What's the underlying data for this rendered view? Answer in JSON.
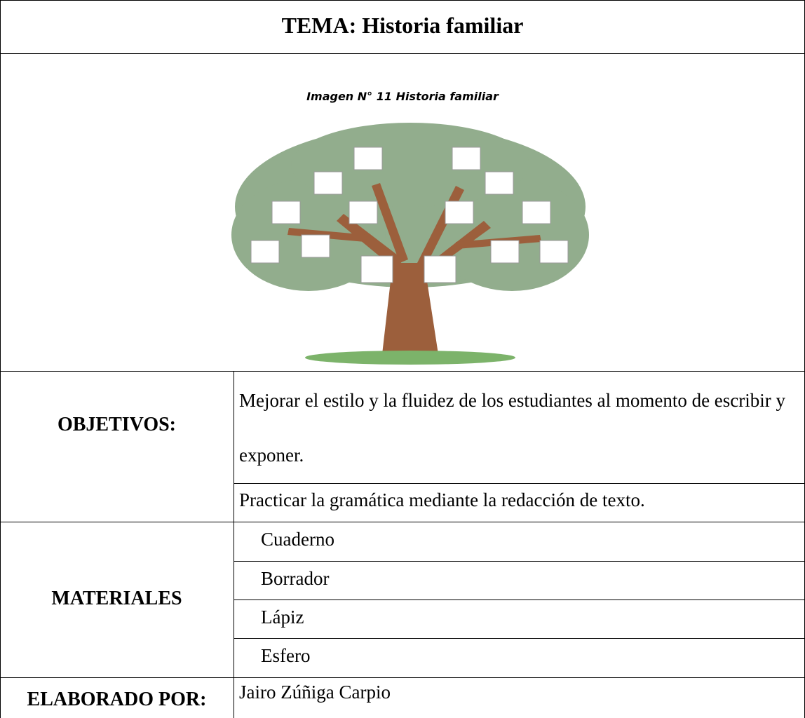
{
  "header": {
    "title": "TEMA: Historia familiar"
  },
  "figure": {
    "caption": "Imagen N° 11 Historia familiar"
  },
  "objectives": {
    "label": "OBJETIVOS:",
    "items": [
      "Mejorar el estilo y la fluidez de los estudiantes al momento de escribir y exponer.",
      "Practicar la gramática mediante la redacción de texto."
    ]
  },
  "materials": {
    "label": "MATERIALES",
    "items": [
      "Cuaderno",
      "Borrador",
      "Lápiz",
      "Esfero"
    ]
  },
  "author": {
    "label": "ELABORADO POR:",
    "value": "Jairo Zúñiga Carpio"
  }
}
